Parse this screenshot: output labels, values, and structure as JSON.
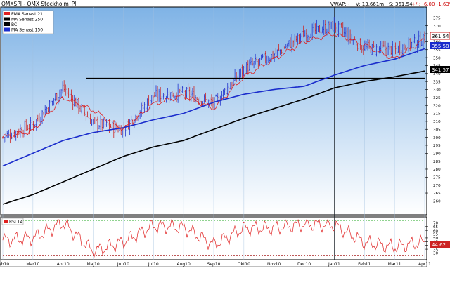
{
  "header": {
    "title": "OMXSPI - OMX Stockholm_PI",
    "vwap_label": "VWAP: -",
    "volume_label": "V: 13.661m",
    "last_label": "S: 361,54",
    "change_label": "+/-: -6,00  -1,63%"
  },
  "legend": [
    {
      "label": "EMA  Senast 21",
      "color": "#e02020"
    },
    {
      "label": "MA  Senast 250",
      "color": "#000000"
    },
    {
      "label": "BC",
      "color": "#000000"
    },
    {
      "label": "MA  Senast 150",
      "color": "#1a2ccc"
    }
  ],
  "rsi_panel": {
    "label": "RSI 14"
  },
  "badges": {
    "price": "361.54",
    "ma150": "355.58",
    "ma250": "341.57",
    "rsi": "44.62"
  },
  "colors": {
    "background_top": "#7fb3e6",
    "background_bottom": "#ffffff",
    "candles_up": "#2233cc",
    "candles_down": "#cc2222",
    "ema": "#e02020",
    "ma150": "#1a2ccc",
    "ma250": "#000000",
    "rsi": "#e02020",
    "rsi_upper": "#22aa22",
    "rsi_lower": "#aa2222"
  },
  "chart_data": [
    {
      "type": "line",
      "title": "OMXSPI - OMX Stockholm_PI",
      "x_ticks": [
        "Feb10",
        "Mar10",
        "Apr10",
        "Maj10",
        "Jun10",
        "Jul10",
        "Aug10",
        "Sep10",
        "Okt10",
        "Nov10",
        "Dec10",
        "Jan11",
        "Feb11",
        "Mar11",
        "Apr11"
      ],
      "y_ticks": [
        260,
        265,
        270,
        275,
        280,
        285,
        290,
        295,
        300,
        305,
        310,
        315,
        320,
        325,
        330,
        335,
        340,
        345,
        350,
        355,
        360,
        365,
        370,
        375
      ],
      "ylim": [
        254,
        380
      ],
      "grid": false,
      "legend_position": "top-left",
      "series": [
        {
          "name": "MA  Senast 250",
          "points": [
            [
              "Feb10",
              258
            ],
            [
              "Mar10",
              264
            ],
            [
              "Apr10",
              272
            ],
            [
              "Maj10",
              280
            ],
            [
              "Jun10",
              288
            ],
            [
              "Jul10",
              294
            ],
            [
              "Aug10",
              298
            ],
            [
              "Sep10",
              305
            ],
            [
              "Okt10",
              312
            ],
            [
              "Nov10",
              318
            ],
            [
              "Dec10",
              324
            ],
            [
              "Jan11",
              331
            ],
            [
              "Feb11",
              335
            ],
            [
              "Mar11",
              338
            ],
            [
              "Apr11",
              341.57
            ]
          ]
        },
        {
          "name": "MA  Senast 150",
          "points": [
            [
              "Feb10",
              282
            ],
            [
              "Mar10",
              290
            ],
            [
              "Apr10",
              298
            ],
            [
              "Maj10",
              303
            ],
            [
              "Jun10",
              306
            ],
            [
              "Jul10",
              311
            ],
            [
              "Aug10",
              315
            ],
            [
              "Sep10",
              322
            ],
            [
              "Okt10",
              327
            ],
            [
              "Nov10",
              330
            ],
            [
              "Dec10",
              332
            ],
            [
              "Jan11",
              339
            ],
            [
              "Feb11",
              345
            ],
            [
              "Mar11",
              349
            ],
            [
              "Apr11",
              355.58
            ]
          ]
        },
        {
          "name": "EMA  Senast 21",
          "points": [
            [
              "Feb10",
              300
            ],
            [
              "Mar10",
              304
            ],
            [
              "Apr10",
              325
            ],
            [
              "Maj10",
              317
            ],
            [
              "Jun10",
              305
            ],
            [
              "Jul10",
              321
            ],
            [
              "Aug10",
              326
            ],
            [
              "Sep10",
              318
            ],
            [
              "Okt10",
              338
            ],
            [
              "Nov10",
              349
            ],
            [
              "Dec10",
              360
            ],
            [
              "Jan11",
              365
            ],
            [
              "Feb11",
              358
            ],
            [
              "Mar11",
              349
            ],
            [
              "Apr11",
              361.54
            ]
          ]
        }
      ],
      "price_path": [
        [
          "Feb10",
          300
        ],
        [
          "Mar10",
          308
        ],
        [
          "Apr10",
          331
        ],
        [
          "Maj10",
          309
        ],
        [
          "Jun10",
          305
        ],
        [
          "Jul10",
          326
        ],
        [
          "Aug10",
          328
        ],
        [
          "Sep10",
          321
        ],
        [
          "Okt10",
          343
        ],
        [
          "Nov10",
          352
        ],
        [
          "Dec10",
          365
        ],
        [
          "Jan11",
          370
        ],
        [
          "Feb11",
          356
        ],
        [
          "Mar11",
          355
        ],
        [
          "Apr11",
          361.54
        ]
      ],
      "horizontal_level": 337
    },
    {
      "type": "line",
      "title": "RSI 14",
      "y_ticks": [
        30,
        35,
        40,
        45,
        50,
        55,
        60,
        65,
        70
      ],
      "ylim": [
        23,
        75
      ],
      "reference_lines": [
        73,
        27
      ],
      "series": [
        {
          "name": "RSI 14",
          "points": [
            [
              "Feb10",
              47
            ],
            [
              "Mar10",
              50
            ],
            [
              "Apr10",
              70
            ],
            [
              "Maj10",
              32
            ],
            [
              "Jun10",
              45
            ],
            [
              "Jul10",
              66
            ],
            [
              "Aug10",
              64
            ],
            [
              "Sep10",
              41
            ],
            [
              "Okt10",
              63
            ],
            [
              "Nov10",
              63
            ],
            [
              "Dec10",
              68
            ],
            [
              "Jan11",
              67
            ],
            [
              "Feb11",
              44
            ],
            [
              "Mar11",
              38
            ],
            [
              "Apr11",
              44.62
            ]
          ]
        }
      ]
    }
  ]
}
